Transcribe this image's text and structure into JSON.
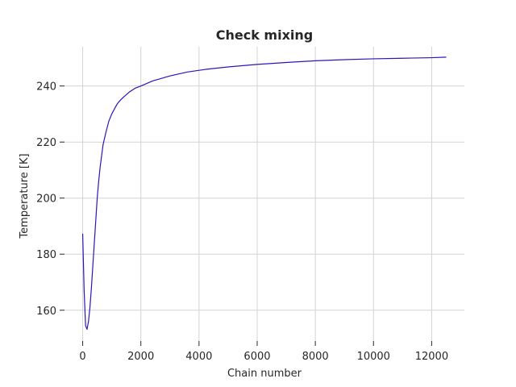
{
  "chart_data": {
    "type": "line",
    "title": "Check mixing",
    "xlabel": "Chain number",
    "ylabel": "Temperature [K]",
    "xlim": [
      -625,
      13125
    ],
    "ylim": [
      149,
      254
    ],
    "xticks": [
      0,
      2000,
      4000,
      6000,
      8000,
      10000,
      12000
    ],
    "yticks": [
      160,
      180,
      200,
      220,
      240
    ],
    "grid": true,
    "series": [
      {
        "color": "#2a17b8",
        "x": [
          0,
          50,
          100,
          150,
          200,
          250,
          300,
          350,
          400,
          450,
          500,
          550,
          600,
          650,
          700,
          800,
          900,
          1000,
          1100,
          1200,
          1300,
          1400,
          1600,
          1800,
          2000,
          2400,
          3000,
          3600,
          4200,
          5000,
          6000,
          7000,
          8000,
          9000,
          10000,
          11000,
          12000,
          12500
        ],
        "values": [
          187.3,
          167,
          154.5,
          153.2,
          156,
          161,
          168,
          176,
          184,
          192,
          200,
          206,
          211,
          215,
          219,
          223.5,
          227.5,
          230,
          232,
          233.8,
          235,
          236,
          237.8,
          239.2,
          240,
          241.8,
          243.6,
          245,
          245.9,
          246.8,
          247.7,
          248.4,
          249,
          249.4,
          249.7,
          249.9,
          250.1,
          250.3
        ]
      }
    ]
  }
}
